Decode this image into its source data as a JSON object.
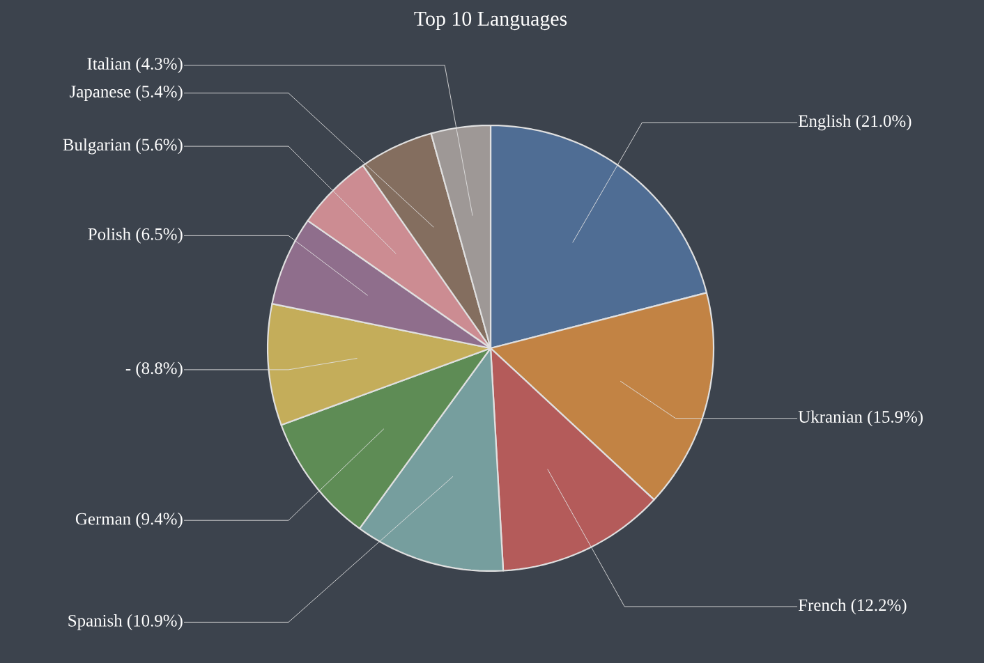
{
  "chart_data": {
    "type": "pie",
    "title": "Top 10 Languages",
    "categories": [
      "English",
      "Ukranian",
      "French",
      "Spanish",
      "German",
      "-",
      "Polish",
      "Bulgarian",
      "Japanese",
      "Italian"
    ],
    "values": [
      21.0,
      15.9,
      12.2,
      10.9,
      9.4,
      8.8,
      6.5,
      5.6,
      5.4,
      4.3
    ],
    "value_labels": [
      "(21.0%)",
      "(15.9%)",
      "(12.2%)",
      "(10.9%)",
      "(9.4%)",
      "(8.8%)",
      "(6.5%)",
      "(5.6%)",
      "(5.4%)",
      "(4.3%)"
    ],
    "colors": [
      "#4f6d94",
      "#c28344",
      "#b45b5a",
      "#769e9e",
      "#5e8c55",
      "#c4ad5a",
      "#8f6e8c",
      "#cc8c92",
      "#846e5f",
      "#9e9896"
    ]
  }
}
